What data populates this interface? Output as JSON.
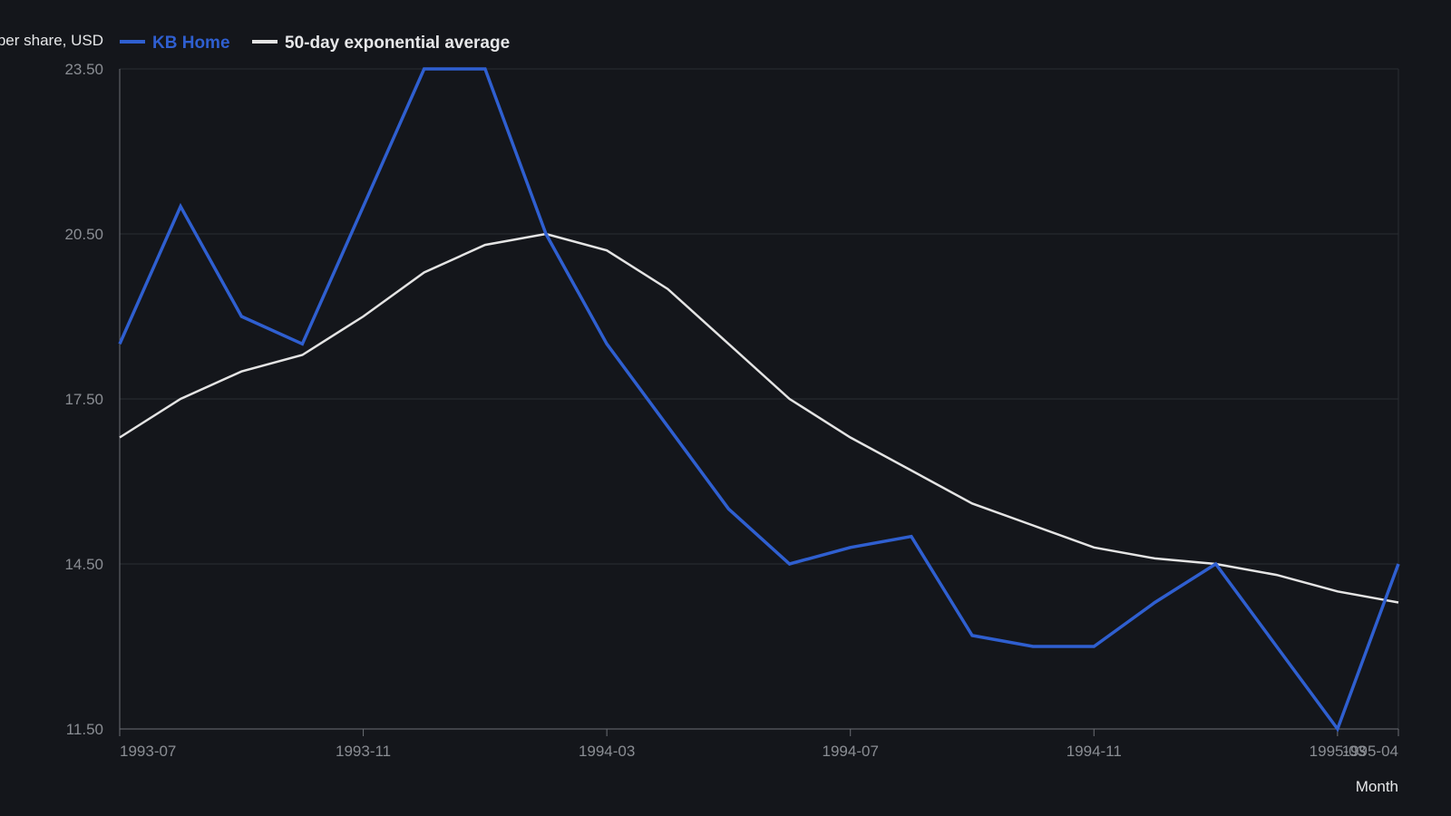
{
  "colors": {
    "background": "#14161b",
    "kb_home": "#2f5fd0",
    "ema": "#e4e4e4"
  },
  "chart_data": {
    "type": "line",
    "xlabel": "Month",
    "ylabel": "Price per share, USD",
    "ylim": [
      11.5,
      23.5
    ],
    "yticks": [
      "11.50",
      "14.50",
      "17.50",
      "20.50",
      "23.50"
    ],
    "xticks": [
      "1993-07",
      "1993-11",
      "1994-03",
      "1994-07",
      "1994-11",
      "1995-03",
      "1995-04"
    ],
    "x": [
      "1993-07",
      "1993-08",
      "1993-09",
      "1993-10",
      "1993-11",
      "1993-12",
      "1994-01",
      "1994-02",
      "1994-03",
      "1994-04",
      "1994-05",
      "1994-06",
      "1994-07",
      "1994-08",
      "1994-09",
      "1994-10",
      "1994-11",
      "1994-12",
      "1995-01",
      "1995-02",
      "1995-03",
      "1995-04"
    ],
    "grid": true,
    "legend_position": "top-left",
    "series": [
      {
        "name": "KB Home",
        "color": "#2f5fd0",
        "values": [
          18.5,
          21.0,
          19.0,
          18.5,
          21.0,
          23.5,
          23.5,
          20.5,
          18.5,
          17.0,
          15.5,
          14.5,
          14.8,
          15.0,
          13.2,
          13.0,
          13.0,
          13.8,
          14.5,
          13.0,
          11.5,
          14.5
        ]
      },
      {
        "name": "50-day exponential average",
        "color": "#e4e4e4",
        "values": [
          16.8,
          17.5,
          18.0,
          18.3,
          19.0,
          19.8,
          20.3,
          20.5,
          20.2,
          19.5,
          18.5,
          17.5,
          16.8,
          16.2,
          15.6,
          15.2,
          14.8,
          14.6,
          14.5,
          14.3,
          14.0,
          13.8
        ]
      }
    ]
  }
}
